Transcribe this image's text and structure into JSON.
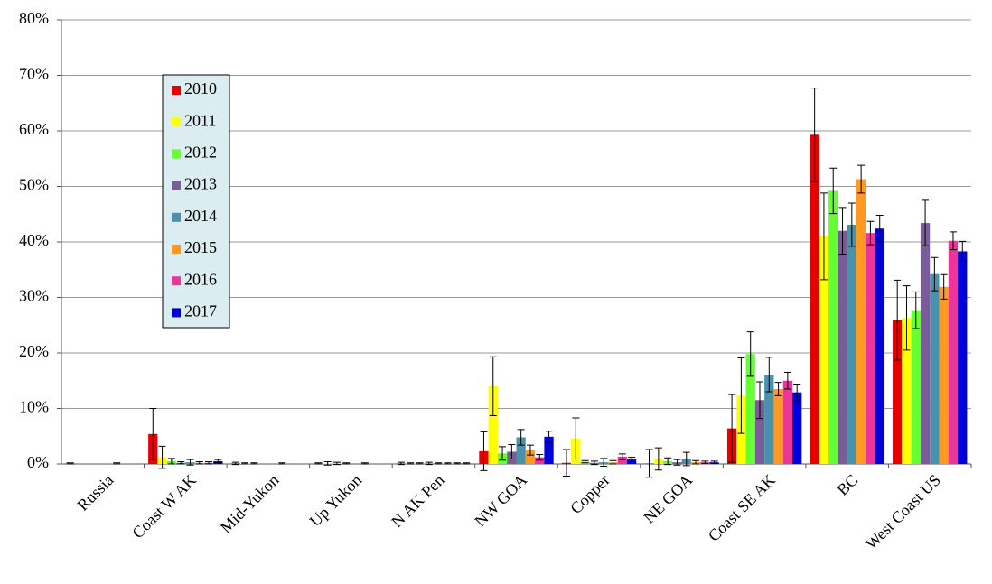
{
  "chart_data": {
    "type": "bar",
    "categories": [
      "Russia",
      "Coast W AK",
      "Mid-Yukon",
      "Up Yukon",
      "N AK Pen",
      "NW GOA",
      "Copper",
      "NE GOA",
      "Coast SE AK",
      "BC",
      "West Coast US"
    ],
    "series": [
      {
        "name": "2010",
        "color": "#e60000",
        "values": [
          0.1,
          5.4,
          0.1,
          0.1,
          0.1,
          2.3,
          0.2,
          0.1,
          6.4,
          59.3,
          25.9
        ],
        "errors": [
          0.1,
          4.6,
          0.2,
          0.1,
          0.2,
          3.5,
          2.4,
          2.5,
          6.1,
          8.4,
          7.2
        ]
      },
      {
        "name": "2011",
        "color": "#ffff00",
        "values": [
          0,
          1.2,
          0.1,
          0.1,
          0.1,
          14.0,
          4.6,
          0.9,
          12.3,
          41.0,
          26.3
        ],
        "errors": [
          0,
          2.0,
          0.1,
          0.3,
          0.1,
          5.3,
          3.7,
          2.0,
          6.8,
          7.8,
          5.8
        ]
      },
      {
        "name": "2012",
        "color": "#66ff33",
        "values": [
          0,
          0.5,
          0.1,
          0.1,
          0.1,
          1.9,
          0.4,
          0.5,
          19.8,
          49.2,
          27.7
        ],
        "errors": [
          0,
          0.5,
          0.1,
          0.2,
          0.1,
          1.2,
          0.2,
          0.6,
          4.0,
          4.1,
          3.3
        ]
      },
      {
        "name": "2013",
        "color": "#7a5c99",
        "values": [
          0,
          0.2,
          0,
          0.1,
          0.1,
          2.2,
          0.2,
          0.3,
          11.5,
          42.0,
          43.4
        ],
        "errors": [
          0,
          0.2,
          0,
          0.1,
          0.2,
          1.3,
          0.3,
          0.5,
          3.3,
          4.2,
          4.1
        ]
      },
      {
        "name": "2014",
        "color": "#4a92aa",
        "values": [
          0,
          0.3,
          0,
          0,
          0.1,
          4.8,
          0.3,
          0.9,
          16.1,
          43.1,
          34.2
        ],
        "errors": [
          0,
          0.5,
          0,
          0,
          0.1,
          1.4,
          0.7,
          1.2,
          3.1,
          3.9,
          3.0
        ]
      },
      {
        "name": "2015",
        "color": "#ff9922",
        "values": [
          0.1,
          0.2,
          0.1,
          0.1,
          0.1,
          2.5,
          0.3,
          0.3,
          13.5,
          51.3,
          31.9
        ],
        "errors": [
          0.1,
          0.2,
          0.1,
          0.1,
          0.1,
          0.9,
          0.3,
          0.3,
          1.2,
          2.5,
          2.2
        ]
      },
      {
        "name": "2016",
        "color": "#ee3399",
        "values": [
          0,
          0.2,
          0,
          0,
          0.1,
          1.2,
          1.3,
          0.3,
          15.0,
          41.6,
          40.2
        ],
        "errors": [
          0,
          0.2,
          0,
          0,
          0.1,
          0.5,
          0.5,
          0.2,
          1.5,
          2.1,
          1.6
        ]
      },
      {
        "name": "2017",
        "color": "#0000dd",
        "values": [
          0,
          0.5,
          0,
          0,
          0.1,
          4.9,
          0.8,
          0.3,
          12.9,
          42.4,
          38.3
        ],
        "errors": [
          0,
          0.3,
          0,
          0,
          0.1,
          1.0,
          0.4,
          0.2,
          1.5,
          2.4,
          1.8
        ]
      }
    ],
    "ylim": [
      0,
      80
    ],
    "yticks": [
      {
        "value": 0,
        "label": "0%"
      },
      {
        "value": 10,
        "label": "10%"
      },
      {
        "value": 20,
        "label": "20%"
      },
      {
        "value": 30,
        "label": "30%"
      },
      {
        "value": 40,
        "label": "40%"
      },
      {
        "value": 50,
        "label": "50%"
      },
      {
        "value": 60,
        "label": "60%"
      },
      {
        "value": 70,
        "label": "70%"
      },
      {
        "value": 80,
        "label": "80%"
      }
    ],
    "grid": true
  }
}
